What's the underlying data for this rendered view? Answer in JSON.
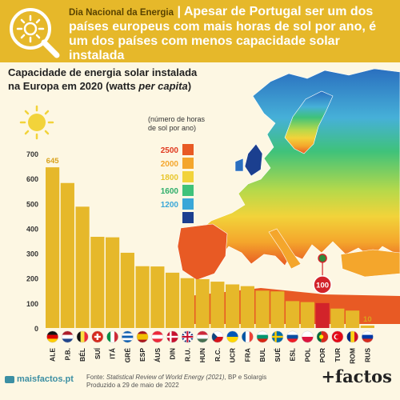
{
  "banner": {
    "kicker": "Dia Nacional da Energia",
    "separator": "|",
    "headline": "Apesar de Portugal ser um dos países europeus com mais horas de sol por ano, é um dos países com menos capacidade solar instalada"
  },
  "chart_title_line1": "Capacidade de energia solar instalada",
  "chart_title_line2_prefix": "na Europa em 2020 (watts ",
  "chart_title_line2_italic": "per capita",
  "chart_title_line2_suffix": ")",
  "legend": {
    "title_line1": "(número de horas",
    "title_line2": "de sol por ano)",
    "items": [
      {
        "label": "2500",
        "color": "#e85a24",
        "text_color": "#e0391f"
      },
      {
        "label": "2000",
        "color": "#f4a62c",
        "text_color": "#f4a62c"
      },
      {
        "label": "1800",
        "color": "#f2d33a",
        "text_color": "#e8c62c"
      },
      {
        "label": "1600",
        "color": "#3fc27a",
        "text_color": "#2fae6a"
      },
      {
        "label": "1200",
        "color": "#3aa7d8",
        "text_color": "#3aa7d8"
      },
      {
        "label": "",
        "color": "#1b3f8f",
        "text_color": "#1b3f8f"
      }
    ]
  },
  "chart_data": {
    "type": "bar",
    "title": "Capacidade de energia solar instalada na Europa em 2020 (watts per capita)",
    "categories": [
      "ALE",
      "P.B.",
      "BÉL",
      "SUÍ",
      "ITÁ",
      "GRÉ",
      "ESP",
      "ÁUS",
      "DIN",
      "R.U.",
      "HUN",
      "R.C.",
      "UCR",
      "FRA",
      "BUL",
      "SUÉ",
      "ESL",
      "POL",
      "POR",
      "TUR",
      "ROM",
      "RUS"
    ],
    "values": [
      645,
      582,
      487,
      366,
      364,
      302,
      248,
      247,
      222,
      200,
      196,
      186,
      175,
      168,
      150,
      147,
      108,
      104,
      100,
      78,
      70,
      10
    ],
    "ylim": [
      0,
      700
    ],
    "yticks": [
      0,
      100,
      200,
      300,
      400,
      500,
      600,
      700
    ],
    "highlight_index": 18,
    "highlight_label": "100",
    "first_label": "645",
    "last_label": "10",
    "bar_color": "#e6b82a",
    "highlight_color": "#d2232a",
    "grid": false
  },
  "flags": [
    "germany",
    "netherlands",
    "belgium",
    "switzerland",
    "italy",
    "greece",
    "spain",
    "austria",
    "denmark",
    "uk",
    "hungary",
    "czechia",
    "ukraine",
    "france",
    "bulgaria",
    "sweden",
    "slovakia",
    "poland",
    "portugal",
    "turkey",
    "romania",
    "russia"
  ],
  "footer": {
    "site": "maisfactos.pt",
    "source_prefix": "Fonte: ",
    "source_italic": "Statistical Review of World Energy (2021)",
    "source_suffix": ", BP e Solargis",
    "produced": "Produzido a 29 de maio de 2022",
    "logo": "+factos"
  }
}
